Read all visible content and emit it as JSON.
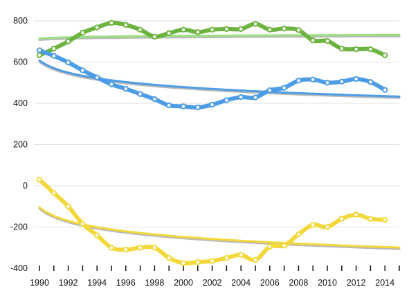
{
  "chart_data": {
    "type": "line",
    "title": "",
    "xlabel": "",
    "ylabel": "",
    "xlim": [
      1990,
      2015
    ],
    "ylim": [
      -400,
      800
    ],
    "x_ticks": [
      1990,
      1992,
      1994,
      1996,
      1998,
      2000,
      2002,
      2004,
      2006,
      2008,
      2010,
      2012,
      2014
    ],
    "y_ticks": [
      -400,
      -200,
      0,
      200,
      400,
      600,
      800
    ],
    "grid": "horizontal",
    "legend": "none",
    "x": [
      1990,
      1991,
      1992,
      1993,
      1994,
      1995,
      1996,
      1997,
      1998,
      1999,
      2000,
      2001,
      2002,
      2003,
      2004,
      2005,
      2006,
      2007,
      2008,
      2009,
      2010,
      2011,
      2012,
      2013,
      2014
    ],
    "series": [
      {
        "color": "#6cb33f",
        "trend_color": "#9be080",
        "trendline": "logarithmic",
        "values": [
          633,
          665,
          700,
          742,
          768,
          790,
          780,
          757,
          723,
          740,
          757,
          745,
          757,
          760,
          760,
          785,
          757,
          762,
          755,
          705,
          702,
          665,
          662,
          662,
          633
        ]
      },
      {
        "color": "#4c9ce6",
        "trend_color": "#4c9ce6",
        "trendline": "logarithmic",
        "values": [
          657,
          630,
          598,
          560,
          525,
          492,
          470,
          445,
          420,
          390,
          385,
          380,
          393,
          415,
          430,
          428,
          463,
          475,
          510,
          515,
          500,
          505,
          518,
          503,
          465
        ]
      },
      {
        "color": "#f3d83b",
        "trend_color": "#f3d83b",
        "trendline": "logarithmic",
        "values": [
          30,
          -35,
          -100,
          -185,
          -240,
          -300,
          -310,
          -300,
          -300,
          -350,
          -375,
          -370,
          -365,
          -350,
          -335,
          -360,
          -295,
          -290,
          -235,
          -190,
          -200,
          -160,
          -140,
          -160,
          -165
        ]
      }
    ]
  }
}
